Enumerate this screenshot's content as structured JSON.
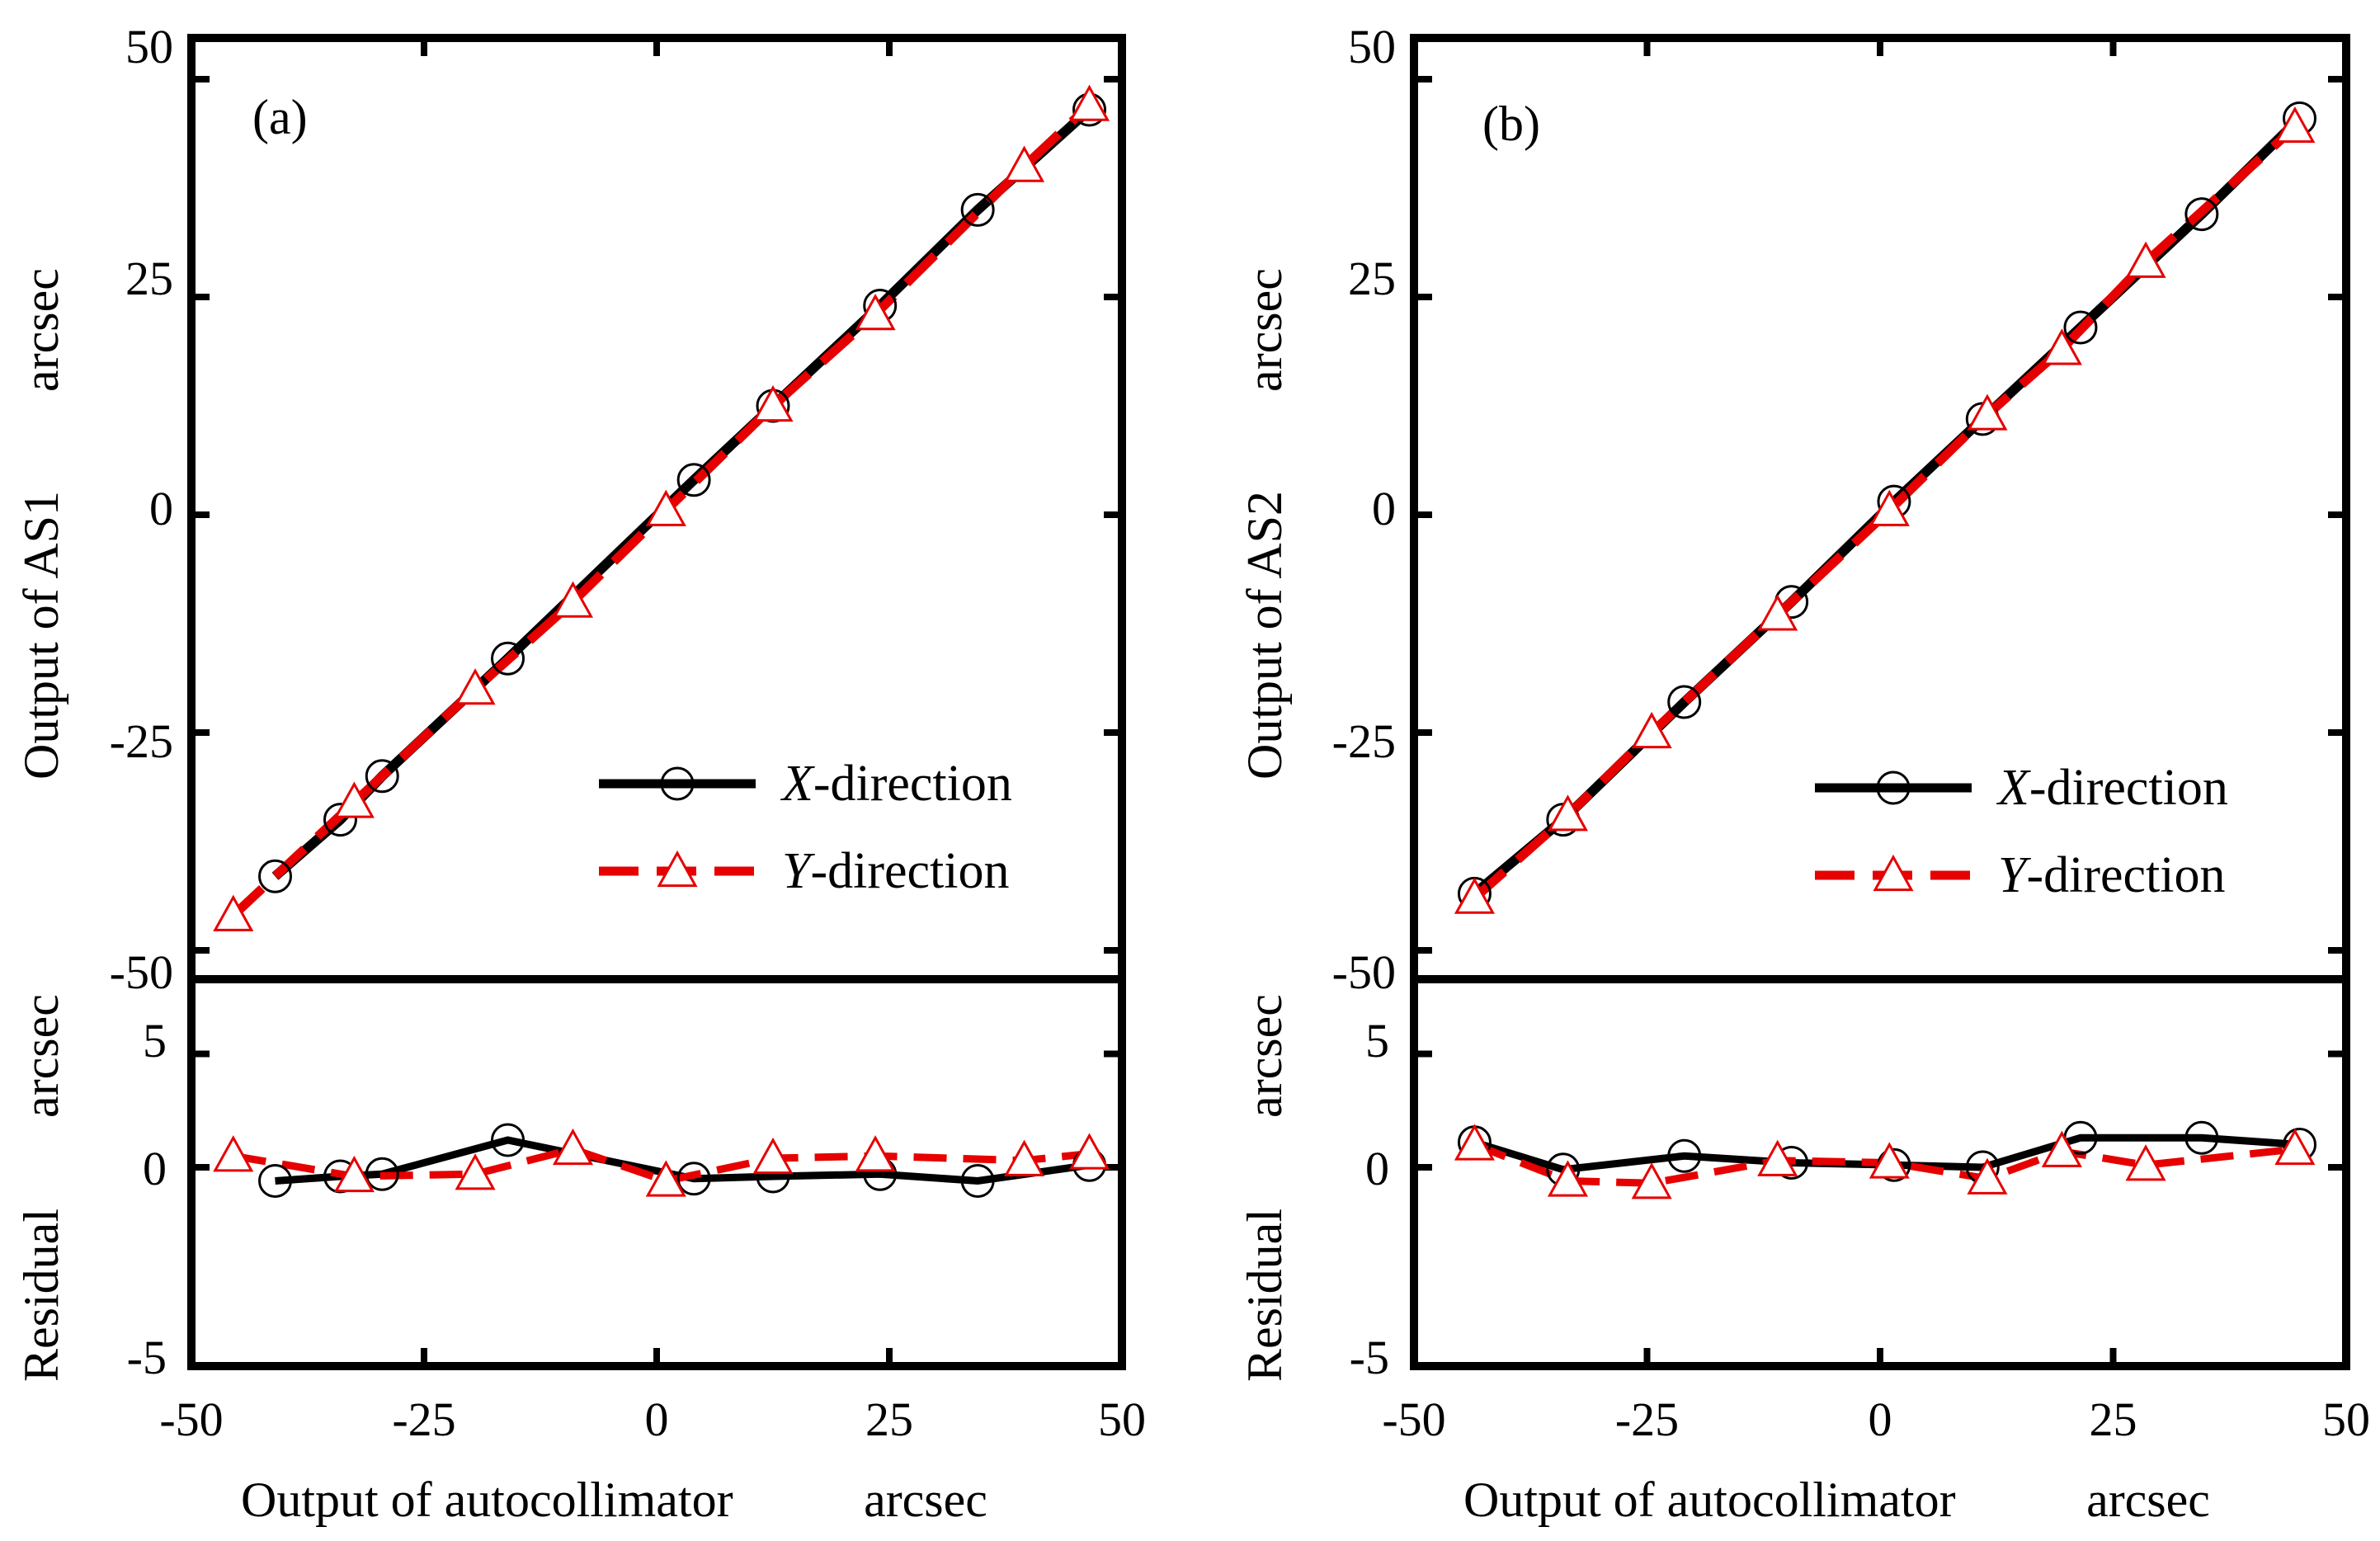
{
  "colors": {
    "x_series": "#000000",
    "y_series": "#e60000",
    "axes": "#000000",
    "background": "#ffffff"
  },
  "shared": {
    "xlabel": "Output of autocollimator",
    "xunit": "arcsec",
    "residual_label": "Residual",
    "residual_unit": "arcsec",
    "output_unit": "arcsec"
  },
  "chart_data": [
    {
      "type": "line",
      "panel_label": "(a)",
      "ylabel": "Output of AS1",
      "xlim": [
        -50,
        50
      ],
      "ylim": [
        -50,
        50
      ],
      "x_ticks": [
        "-50",
        "-25",
        "0",
        "25",
        "50"
      ],
      "y_ticks": [
        "50",
        "25",
        "0",
        "-25",
        "-50"
      ],
      "legend_position": "bottom-right",
      "series": [
        {
          "name": "X-direction",
          "name_prefix": "X",
          "name_suffix": "-direction",
          "marker": "circle",
          "line_style": "solid",
          "x": [
            -41,
            -34,
            -29.5,
            -16,
            4,
            12.5,
            24,
            34.5,
            46.5
          ],
          "y": [
            -41.5,
            -35,
            -30,
            -16.5,
            4,
            12.5,
            24,
            35,
            46.5
          ]
        },
        {
          "name": "Y-direction",
          "name_prefix": "Y",
          "name_suffix": "-direction",
          "marker": "triangle",
          "line_style": "dashed",
          "x": [
            -45.5,
            -32.5,
            -19.5,
            -9,
            1,
            12.5,
            23.5,
            39.5,
            46.5
          ],
          "y": [
            -46,
            -33,
            -20,
            -10,
            0.5,
            12.5,
            23,
            40,
            47
          ]
        }
      ],
      "residual": {
        "ylim": [
          -5,
          5
        ],
        "y_ticks": [
          "5",
          "0",
          "-5"
        ],
        "series": [
          {
            "name": "X-direction",
            "x": [
              -41,
              -34,
              -29.5,
              -16,
              4,
              12.5,
              24,
              34.5,
              46.5
            ],
            "y": [
              -0.6,
              -0.4,
              -0.3,
              1.2,
              -0.5,
              -0.4,
              -0.3,
              -0.6,
              0.1
            ]
          },
          {
            "name": "Y-direction",
            "x": [
              -45.5,
              -32.5,
              -19.5,
              -9,
              1,
              12.5,
              23.5,
              39.5,
              46.5
            ],
            "y": [
              0.5,
              -0.4,
              -0.3,
              0.8,
              -0.6,
              0.4,
              0.5,
              0.3,
              0.6
            ]
          }
        ]
      }
    },
    {
      "type": "line",
      "panel_label": "(b)",
      "ylabel": "Output of AS2",
      "xlim": [
        -50,
        50
      ],
      "ylim": [
        -50,
        50
      ],
      "x_ticks": [
        "-50",
        "-25",
        "0",
        "25",
        "50"
      ],
      "y_ticks": [
        "50",
        "25",
        "0",
        "-25",
        "-50"
      ],
      "legend_position": "bottom-right",
      "series": [
        {
          "name": "X-direction",
          "name_prefix": "X",
          "name_suffix": "-direction",
          "marker": "circle",
          "line_style": "solid",
          "x": [
            -43.5,
            -34,
            -21,
            -9.5,
            1.5,
            11,
            21.5,
            34.5,
            45
          ],
          "y": [
            -43.5,
            -35,
            -21.5,
            -10,
            1.5,
            11,
            21.5,
            34.5,
            45.5
          ]
        },
        {
          "name": "Y-direction",
          "name_prefix": "Y",
          "name_suffix": "-direction",
          "marker": "triangle",
          "line_style": "dashed",
          "x": [
            -43.5,
            -33.5,
            -24.5,
            -11,
            1,
            11.5,
            19.5,
            28.5,
            44.5
          ],
          "y": [
            -44,
            -34.5,
            -25,
            -11.5,
            0.5,
            11.5,
            19,
            29,
            44.5
          ]
        }
      ],
      "residual": {
        "ylim": [
          -5,
          5
        ],
        "y_ticks": [
          "5",
          "0",
          "-5"
        ],
        "series": [
          {
            "name": "X-direction",
            "x": [
              -43.5,
              -34,
              -21,
              -9.5,
              1.5,
              11,
              21.5,
              34.5,
              45
            ],
            "y": [
              1.1,
              -0.1,
              0.5,
              0.2,
              0.1,
              0.0,
              1.3,
              1.3,
              1.0
            ]
          },
          {
            "name": "Y-direction",
            "x": [
              -43.5,
              -33.5,
              -24.5,
              -11,
              1,
              11.5,
              19.5,
              28.5,
              44.5
            ],
            "y": [
              1.0,
              -0.6,
              -0.7,
              0.3,
              0.2,
              -0.5,
              0.7,
              0.1,
              0.8
            ]
          }
        ]
      }
    }
  ]
}
